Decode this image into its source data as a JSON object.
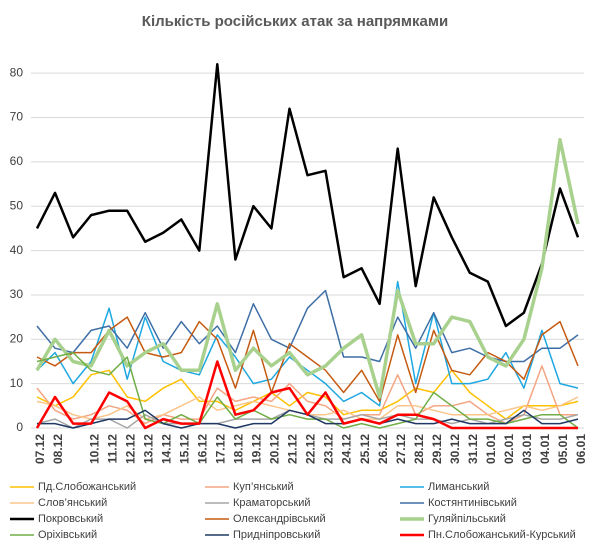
{
  "chart_data": {
    "type": "line",
    "title": "Кількість російських атак за напрямками",
    "categories": [
      "07.12",
      "08.12",
      null,
      "10.12",
      "11.12",
      "12.12",
      "13.12",
      "14.12",
      "15.12",
      "16.12",
      "17.12",
      "18.12",
      "19.12",
      "20.12",
      "21.12",
      "22.12",
      "23.12",
      "24.12",
      "25.12",
      "26.12",
      "27.12",
      "28.12",
      "29.12",
      "30.12",
      "31.12",
      "01.01",
      "02.01",
      "03.01",
      "04.01",
      "05.01",
      "06.01"
    ],
    "ylim": [
      0,
      85
    ],
    "yticks": [
      0,
      10,
      20,
      30,
      40,
      50,
      60,
      70,
      80
    ],
    "grid": true,
    "series": [
      {
        "name": "Пд.Слобожанський",
        "color": "#ffc000",
        "width": 1.5,
        "values": [
          7,
          5,
          7,
          12,
          13,
          7,
          6,
          9,
          11,
          6,
          6,
          4,
          6,
          8,
          5,
          8,
          7,
          3,
          4,
          4,
          6,
          9,
          8,
          13,
          8,
          5,
          2,
          5,
          5,
          5,
          6
        ]
      },
      {
        "name": "Куп’янський",
        "color": "#f4a582",
        "width": 1.5,
        "values": [
          9,
          4,
          2,
          3,
          5,
          4,
          1,
          3,
          2,
          2,
          9,
          6,
          7,
          6,
          10,
          6,
          5,
          2,
          3,
          3,
          12,
          3,
          5,
          5,
          6,
          3,
          1,
          3,
          14,
          3,
          3
        ]
      },
      {
        "name": "Лиманський",
        "color": "#1ea7e1",
        "width": 1.5,
        "values": [
          13,
          17,
          10,
          15,
          27,
          11,
          25,
          15,
          13,
          12,
          21,
          16,
          10,
          11,
          16,
          13,
          10,
          6,
          8,
          5,
          33,
          10,
          26,
          10,
          10,
          11,
          17,
          9,
          22,
          10,
          9
        ]
      },
      {
        "name": "Слов’янський",
        "color": "#fbc58a",
        "width": 1.5,
        "values": [
          6,
          5,
          3,
          2,
          3,
          5,
          2,
          3,
          5,
          7,
          4,
          5,
          6,
          5,
          4,
          3,
          3,
          4,
          2,
          2,
          5,
          5,
          4,
          3,
          3,
          3,
          4,
          5,
          4,
          5,
          7
        ]
      },
      {
        "name": "Краматорський",
        "color": "#a6a6a6",
        "width": 1.5,
        "values": [
          1,
          2,
          0,
          2,
          2,
          0,
          3,
          1,
          1,
          1,
          1,
          2,
          2,
          2,
          4,
          3,
          2,
          2,
          3,
          2,
          3,
          2,
          2,
          1,
          2,
          1,
          2,
          3,
          2,
          2,
          3
        ]
      },
      {
        "name": "Костянтинівський",
        "color": "#3e6fa6",
        "width": 1.5,
        "values": [
          23,
          18,
          17,
          22,
          23,
          18,
          26,
          18,
          24,
          19,
          23,
          17,
          28,
          20,
          18,
          27,
          31,
          16,
          16,
          15,
          25,
          18,
          26,
          17,
          18,
          16,
          15,
          15,
          18,
          18,
          21
        ]
      },
      {
        "name": "Покровський",
        "color": "#000000",
        "width": 2.5,
        "values": [
          45,
          53,
          43,
          48,
          49,
          49,
          42,
          44,
          47,
          40,
          82,
          38,
          50,
          45,
          72,
          57,
          58,
          34,
          36,
          28,
          63,
          32,
          52,
          43,
          35,
          33,
          23,
          26,
          37,
          54,
          43
        ]
      },
      {
        "name": "Олександрівський",
        "color": "#c55a11",
        "width": 1.5,
        "values": [
          16,
          14,
          17,
          17,
          22,
          25,
          17,
          16,
          17,
          24,
          20,
          9,
          22,
          8,
          19,
          16,
          13,
          8,
          13,
          6,
          21,
          8,
          22,
          13,
          12,
          17,
          15,
          11,
          21,
          24,
          14
        ]
      },
      {
        "name": "Гуляйпільський",
        "color": "#a9d18e",
        "width": 3.5,
        "values": [
          13,
          20,
          15,
          14,
          22,
          14,
          17,
          19,
          13,
          13,
          28,
          13,
          18,
          14,
          17,
          12,
          14,
          18,
          21,
          7,
          31,
          19,
          19,
          25,
          24,
          16,
          14,
          20,
          36,
          65,
          46
        ]
      },
      {
        "name": "Оріхівський",
        "color": "#70ad47",
        "width": 1.5,
        "values": [
          15,
          16,
          17,
          13,
          12,
          16,
          2,
          1,
          3,
          1,
          7,
          2,
          4,
          2,
          3,
          2,
          2,
          0,
          1,
          0,
          1,
          2,
          8,
          5,
          2,
          2,
          1,
          2,
          3,
          3,
          0
        ]
      },
      {
        "name": "Придніпровський",
        "color": "#1f3864",
        "width": 1.5,
        "values": [
          1,
          1,
          0,
          1,
          2,
          2,
          4,
          1,
          0,
          1,
          1,
          0,
          1,
          1,
          4,
          3,
          1,
          1,
          2,
          1,
          2,
          1,
          1,
          2,
          1,
          1,
          1,
          4,
          1,
          1,
          2
        ]
      },
      {
        "name": "Пн.Слобожанський-Курський",
        "color": "#ff0000",
        "width": 2.5,
        "values": [
          0,
          7,
          1,
          1,
          8,
          6,
          0,
          2,
          1,
          1,
          15,
          3,
          4,
          8,
          9,
          3,
          8,
          1,
          2,
          1,
          3,
          3,
          2,
          0,
          0,
          0,
          0,
          0,
          0,
          0,
          0
        ]
      }
    ]
  }
}
